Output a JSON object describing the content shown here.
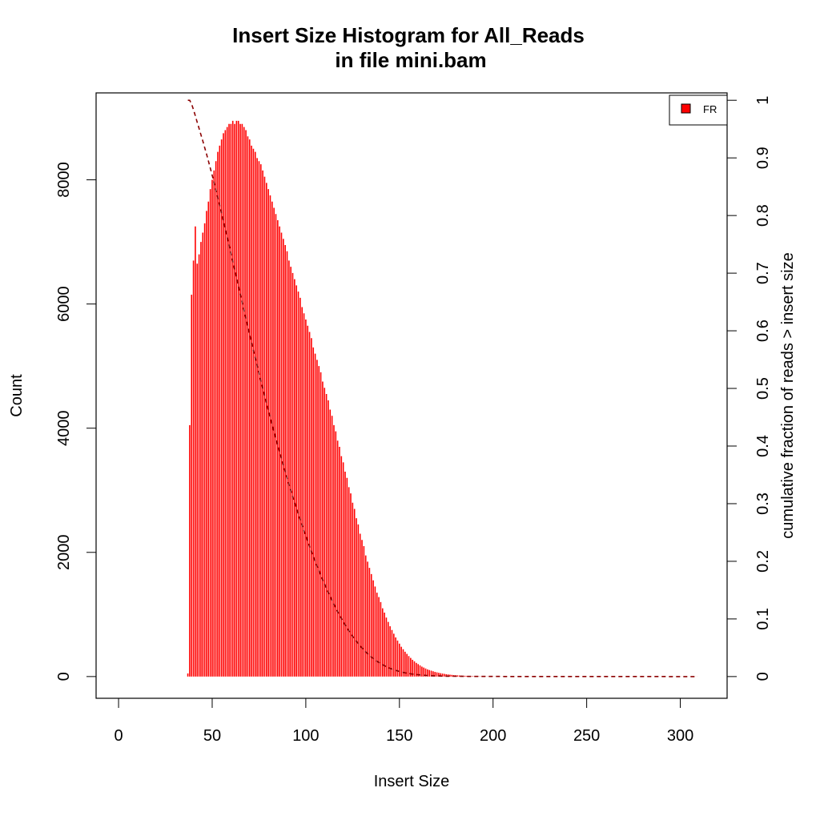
{
  "chart_data": {
    "type": "bar",
    "title": "Insert Size Histogram for All_Reads",
    "subtitle": "in file mini.bam",
    "xlabel": "Insert Size",
    "ylabel": "Count",
    "y2label": "cumulative fraction of reads > insert size",
    "xlim": [
      -12,
      325
    ],
    "ylim": [
      -350,
      9400
    ],
    "y2lim": [
      -0.0377,
      1.0128
    ],
    "x_ticks": [
      0,
      50,
      100,
      150,
      200,
      250,
      300
    ],
    "y_ticks": [
      0,
      2000,
      4000,
      6000,
      8000
    ],
    "y2_ticks": [
      0,
      0.1,
      0.2,
      0.3,
      0.4,
      0.5,
      0.6,
      0.7,
      0.8,
      0.9,
      1
    ],
    "grid": false,
    "legend_position": "top-right",
    "series": [
      {
        "name": "FR",
        "color": "#ff0000",
        "x_start": 37,
        "values": [
          50,
          4050,
          6150,
          6700,
          7250,
          6650,
          6800,
          7000,
          7150,
          7300,
          7500,
          7650,
          7850,
          8000,
          8150,
          8300,
          8450,
          8550,
          8650,
          8750,
          8800,
          8850,
          8900,
          8900,
          8950,
          8900,
          8950,
          8950,
          8900,
          8900,
          8850,
          8800,
          8700,
          8650,
          8550,
          8500,
          8450,
          8350,
          8300,
          8250,
          8150,
          8050,
          7950,
          7850,
          7750,
          7650,
          7550,
          7450,
          7350,
          7250,
          7150,
          7050,
          6950,
          6850,
          6700,
          6600,
          6500,
          6400,
          6300,
          6200,
          6100,
          5950,
          5850,
          5750,
          5650,
          5550,
          5450,
          5300,
          5200,
          5100,
          5000,
          4900,
          4750,
          4650,
          4550,
          4450,
          4300,
          4200,
          4050,
          3950,
          3800,
          3700,
          3550,
          3450,
          3300,
          3200,
          3050,
          2950,
          2800,
          2700,
          2550,
          2450,
          2300,
          2200,
          2100,
          1950,
          1850,
          1750,
          1650,
          1550,
          1450,
          1350,
          1280,
          1200,
          1100,
          1030,
          950,
          880,
          810,
          750,
          690,
          630,
          580,
          530,
          480,
          440,
          400,
          365,
          330,
          300,
          270,
          245,
          220,
          200,
          180,
          160,
          145,
          130,
          115,
          105,
          95,
          85,
          75,
          68,
          60,
          54,
          48,
          43,
          38,
          34,
          30,
          27,
          24,
          21,
          19,
          17,
          15,
          13,
          12,
          10,
          9,
          8,
          7,
          6,
          6,
          5,
          4,
          4,
          3,
          3,
          3,
          2,
          2,
          2,
          2,
          1,
          1,
          1,
          1,
          1,
          1,
          1,
          1,
          1,
          1,
          1,
          1,
          1,
          1,
          1,
          1,
          1,
          1,
          1,
          1,
          1,
          1,
          1,
          1,
          1,
          1,
          1,
          1,
          1,
          1,
          1,
          1,
          1,
          1,
          1,
          1,
          1,
          1,
          1,
          1,
          1,
          1,
          1,
          1,
          1,
          1,
          1,
          1,
          1,
          1,
          1,
          1,
          1,
          1,
          1,
          1,
          1,
          1,
          1,
          1,
          1,
          1,
          1,
          1,
          1,
          1,
          1,
          1,
          1,
          1,
          1,
          1,
          1,
          1,
          1,
          1,
          1,
          1,
          1,
          1,
          1,
          1,
          1,
          1,
          1,
          1,
          1,
          1,
          1,
          1,
          1,
          1,
          1,
          1,
          1,
          1,
          1,
          1,
          1,
          1,
          1,
          1,
          1,
          1,
          1,
          1,
          1,
          1
        ]
      }
    ],
    "cumulative_line": {
      "color": "#8b0000",
      "style": "dashed",
      "axis": "right",
      "values": "cumulative fraction of reads > insert size, derived from the histogram counts"
    }
  }
}
